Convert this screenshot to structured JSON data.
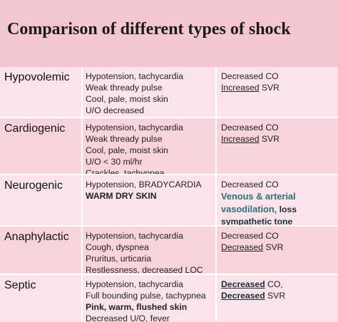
{
  "title": "Comparison of different types of shock",
  "rows": [
    {
      "type": "Hypovolemic",
      "symptoms": [
        "Hypotension, tachycardia",
        "Weak thready pulse",
        "Cool, pale, moist skin",
        "U/O decreased"
      ],
      "hemo": [
        {
          "text": "Decreased CO"
        },
        {
          "pre": "Increased",
          "post": " SVR"
        }
      ]
    },
    {
      "type": "Cardiogenic",
      "symptoms": [
        "Hypotension, tachycardia",
        "Weak thready pulse",
        "Cool, pale, moist skin",
        "U/O < 30 ml/hr",
        "Crackles, tachypnea"
      ],
      "hemo": [
        {
          "text": "Decreased CO"
        },
        {
          "pre": "Increased",
          "post": " SVR"
        }
      ]
    },
    {
      "type": "Neurogenic",
      "symptoms": [
        "Hypotension, BRADYCARDIA",
        "WARM DRY SKIN"
      ],
      "hemo": [
        {
          "text": "Decreased CO"
        },
        {
          "teal": "Venous & arterial"
        },
        {
          "teal": "vasodilation,",
          "dark": " loss"
        },
        {
          "dark": "sympathetic tone"
        }
      ]
    },
    {
      "type": "Anaphylactic",
      "symptoms": [
        "Hypotension, tachycardia",
        "Cough, dyspnea",
        "Pruritus, urticaria",
        "Restlessness, decreased LOC"
      ],
      "hemo": [
        {
          "text": "Decreased CO"
        },
        {
          "pre": "Decreased",
          "post": " SVR"
        }
      ]
    },
    {
      "type": "Septic",
      "symptoms": [
        "Hypotension, tachycardia",
        "Full bounding pulse, tachypnea",
        "Pink, warm, flushed skin",
        "Decreased U/O, fever"
      ],
      "hemo": [
        {
          "pre": "Decreased",
          "post": " CO,"
        },
        {
          "pre": "Decreased",
          "post": " SVR"
        }
      ]
    }
  ]
}
